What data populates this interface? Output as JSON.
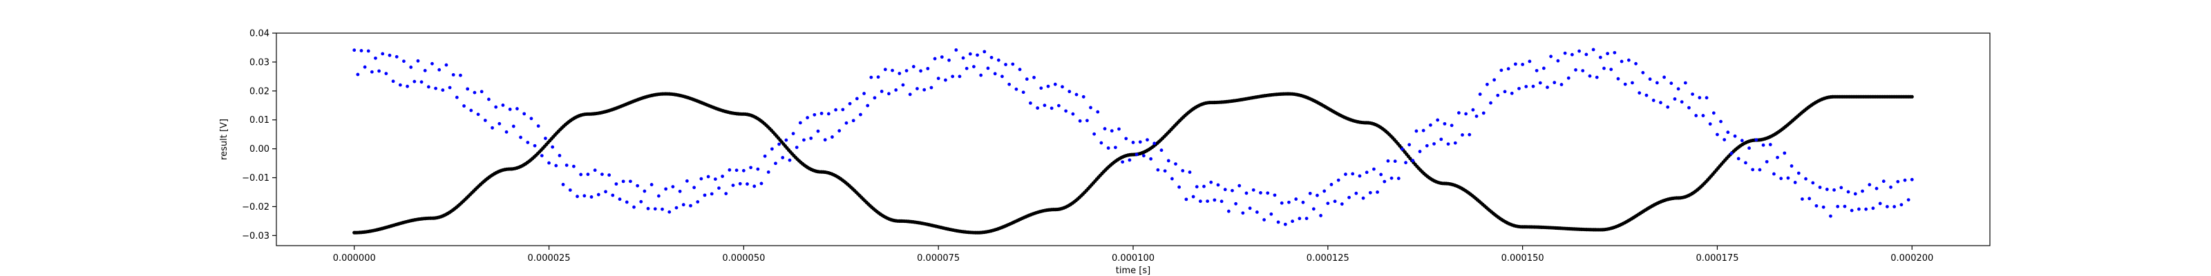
{
  "chart_data": {
    "type": "scatter",
    "title": "",
    "xlabel": "time [s]",
    "ylabel": "result [V]",
    "xlim": [
      -1e-05,
      0.00021
    ],
    "ylim": [
      -0.0335,
      0.04
    ],
    "grid": false,
    "legend": "none",
    "x_ticks": [
      0,
      2.5e-05,
      5e-05,
      7.5e-05,
      0.0001,
      0.000125,
      0.00015,
      0.000175,
      0.0002
    ],
    "x_tick_labels": [
      "0.000000",
      "0.000025",
      "0.000050",
      "0.000075",
      "0.000100",
      "0.000125",
      "0.000150",
      "0.000175",
      "0.000200"
    ],
    "y_ticks": [
      -0.03,
      -0.02,
      -0.01,
      0.0,
      0.01,
      0.02,
      0.03,
      0.04
    ],
    "y_tick_labels": [
      "−0.03",
      "−0.02",
      "−0.01",
      "0.00",
      "0.01",
      "0.02",
      "0.03",
      "0.04"
    ],
    "series": [
      {
        "color": "#0000ff",
        "marker": "dot",
        "description_of_shape": "noisy sinusoid, two interleaved traces",
        "x_start": 0,
        "x_end": 0.0002,
        "x": [
          0,
          1e-05,
          2e-05,
          3e-05,
          4e-05,
          5e-05,
          6e-05,
          7e-05,
          8e-05,
          9e-05,
          0.0001,
          0.00011,
          0.00012,
          0.00013,
          0.00014,
          0.00015,
          0.00016,
          0.00017,
          0.00018,
          0.00019,
          0.0002
        ],
        "y": [
          0.03,
          0.025,
          0.01,
          -0.012,
          -0.018,
          -0.01,
          0.008,
          0.024,
          0.03,
          0.018,
          0.0,
          -0.016,
          -0.021,
          -0.012,
          0.006,
          0.025,
          0.03,
          0.019,
          -0.002,
          -0.018,
          -0.016
        ]
      },
      {
        "color": "#000000",
        "marker": "dot",
        "description_of_shape": "clean sinusoid",
        "x": [
          0,
          1e-05,
          2e-05,
          3e-05,
          4e-05,
          5e-05,
          6e-05,
          7e-05,
          8e-05,
          9e-05,
          0.0001,
          0.00011,
          0.00012,
          0.00013,
          0.00014,
          0.00015,
          0.00016,
          0.00017,
          0.00018,
          0.00019,
          0.0002
        ],
        "y": [
          -0.029,
          -0.024,
          -0.007,
          0.012,
          0.019,
          0.012,
          -0.008,
          -0.025,
          -0.029,
          -0.021,
          -0.002,
          0.016,
          0.019,
          0.009,
          -0.012,
          -0.027,
          -0.028,
          -0.017,
          0.003,
          0.018,
          0.018
        ]
      }
    ]
  }
}
